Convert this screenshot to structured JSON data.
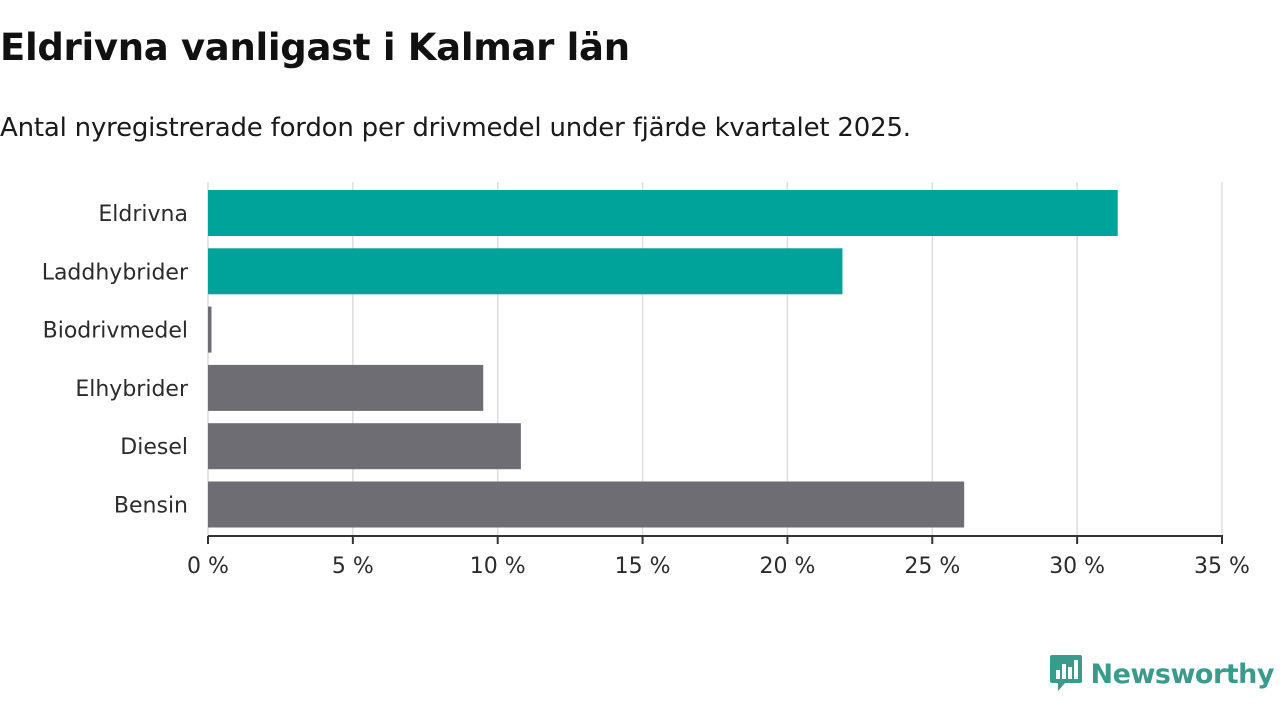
{
  "colors": {
    "highlight": "#00a39a",
    "default": "#6e6d74",
    "grid": "#dddddd",
    "axis": "#333333",
    "brand": "#3a9a8c"
  },
  "brand": {
    "name": "Newsworthy",
    "icon": "newsworthy-logo-icon"
  },
  "chart_data": {
    "type": "bar",
    "orientation": "horizontal",
    "title": "Eldrivna vanligast i Kalmar län",
    "subtitle": "Antal nyregistrerade fordon per drivmedel under fjärde kvartalet 2025.",
    "xlabel": "",
    "ylabel": "",
    "categories": [
      "Eldrivna",
      "Laddhybrider",
      "Biodrivmedel",
      "Elhybrider",
      "Diesel",
      "Bensin"
    ],
    "values": [
      31.4,
      21.9,
      0.1,
      9.5,
      10.8,
      26.1
    ],
    "highlighted": [
      true,
      true,
      false,
      false,
      false,
      false
    ],
    "unit": "%",
    "xlim": [
      0,
      35
    ],
    "xticks": [
      0,
      5,
      10,
      15,
      20,
      25,
      30,
      35
    ],
    "xtick_labels": [
      "0 %",
      "5 %",
      "10 %",
      "15 %",
      "20 %",
      "25 %",
      "30 %",
      "35 %"
    ],
    "grid": true,
    "legend": "none"
  }
}
